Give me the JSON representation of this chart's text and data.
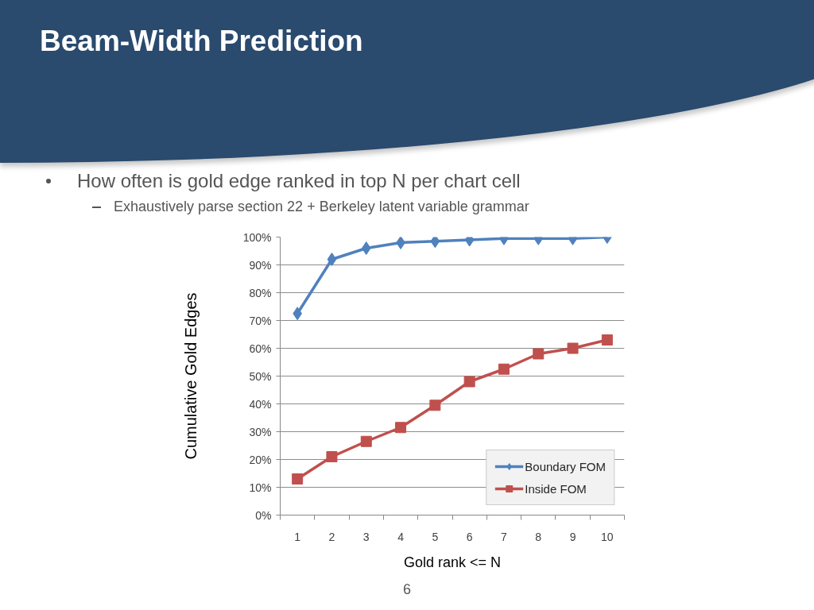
{
  "chart_data": {
    "type": "line",
    "title": "Beam-Width Prediction",
    "subtitle": "How often is gold edge ranked in top N per chart cell",
    "annotations": [
      "Exhaustively parse section 22 + Berkeley latent variable grammar",
      "6"
    ],
    "xlabel": "Gold rank <= N",
    "ylabel": "Cumulative Gold Edges",
    "categories": [
      "1",
      "2",
      "3",
      "4",
      "5",
      "6",
      "7",
      "8",
      "9",
      "10"
    ],
    "series": [
      {
        "name": "Boundary FOM",
        "color": "#4f81bd",
        "marker": "diamond",
        "values": [
          72.5,
          92,
          96,
          98,
          98.5,
          99,
          99.5,
          99.5,
          99.5,
          100
        ]
      },
      {
        "name": "Inside FOM",
        "color": "#c0504d",
        "marker": "square",
        "values": [
          13,
          21,
          26.5,
          31.5,
          39.5,
          48,
          52.5,
          58,
          60,
          63
        ]
      }
    ],
    "ylim": [
      0,
      100
    ],
    "yticks": [
      {
        "value": 0,
        "label": "0%"
      },
      {
        "value": 10,
        "label": "10%"
      },
      {
        "value": 20,
        "label": "20%"
      },
      {
        "value": 30,
        "label": "30%"
      },
      {
        "value": 40,
        "label": "40%"
      },
      {
        "value": 50,
        "label": "50%"
      },
      {
        "value": 60,
        "label": "60%"
      },
      {
        "value": 70,
        "label": "70%"
      },
      {
        "value": 80,
        "label": "80%"
      },
      {
        "value": 90,
        "label": "90%"
      },
      {
        "value": 100,
        "label": "100%"
      }
    ],
    "grid": "y",
    "legend": "bottom right"
  }
}
